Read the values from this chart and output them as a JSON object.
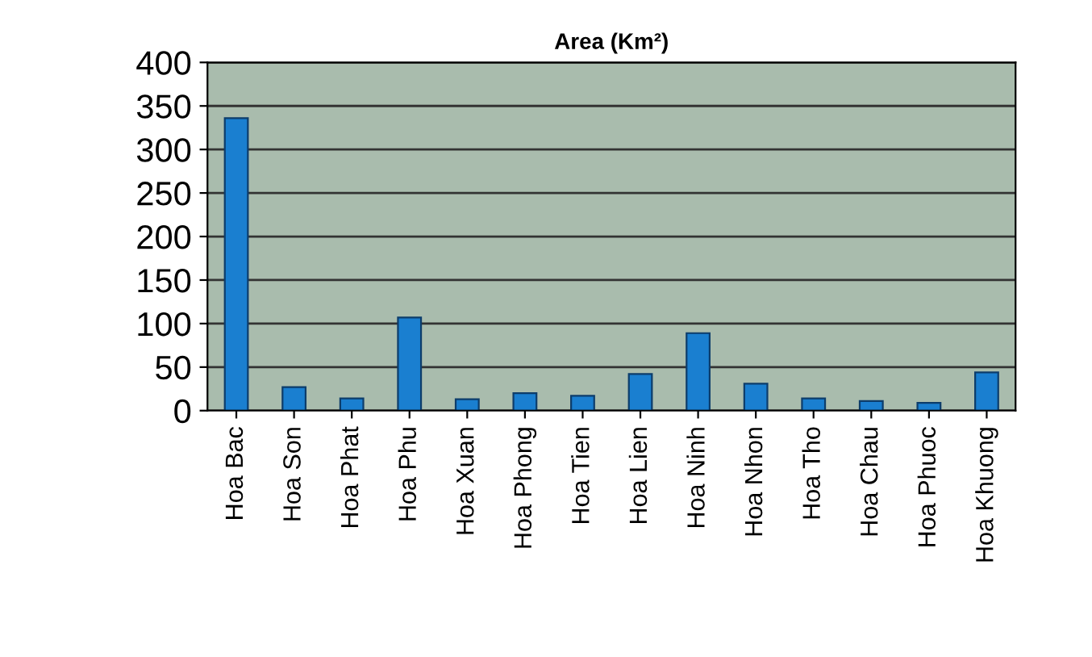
{
  "chart_data": {
    "type": "bar",
    "title": "Area (Km²)",
    "categories": [
      "Hoa Bac",
      "Hoa Son",
      "Hoa Phat",
      "Hoa Phu",
      "Hoa Xuan",
      "Hoa Phong",
      "Hoa Tien",
      "Hoa Lien",
      "Hoa Ninh",
      "Hoa Nhon",
      "Hoa Tho",
      "Hoa Chau",
      "Hoa Phuoc",
      "Hoa Khuong"
    ],
    "values": [
      336,
      27,
      14,
      107,
      13,
      20,
      17,
      42,
      89,
      31,
      14,
      11,
      9,
      44
    ],
    "color": "#1a7fd0",
    "ylim": [
      0,
      400
    ],
    "yticks": [
      0,
      50,
      100,
      150,
      200,
      250,
      300,
      350,
      400
    ],
    "grid": "y"
  }
}
